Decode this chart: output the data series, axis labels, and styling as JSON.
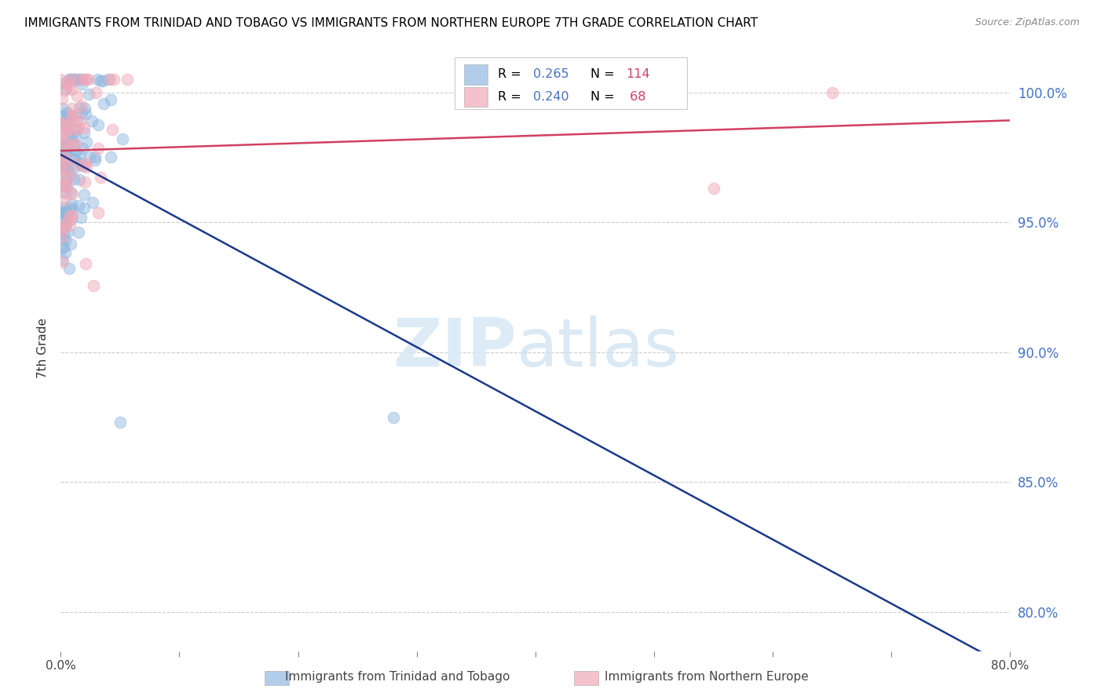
{
  "title": "IMMIGRANTS FROM TRINIDAD AND TOBAGO VS IMMIGRANTS FROM NORTHERN EUROPE 7TH GRADE CORRELATION CHART",
  "source": "Source: ZipAtlas.com",
  "ylabel": "7th Grade",
  "y_tick_labels": [
    "100.0%",
    "95.0%",
    "90.0%",
    "85.0%",
    "80.0%"
  ],
  "y_tick_values": [
    1.0,
    0.95,
    0.9,
    0.85,
    0.8
  ],
  "xlim": [
    0.0,
    0.8
  ],
  "ylim": [
    0.785,
    1.018
  ],
  "blue_color": "#92b8e0",
  "pink_color": "#f0a8b8",
  "trendline_blue": "#1a3a8a",
  "trendline_pink": "#d04060",
  "r_blue": 0.265,
  "n_blue": 114,
  "r_pink": 0.24,
  "n_pink": 68
}
